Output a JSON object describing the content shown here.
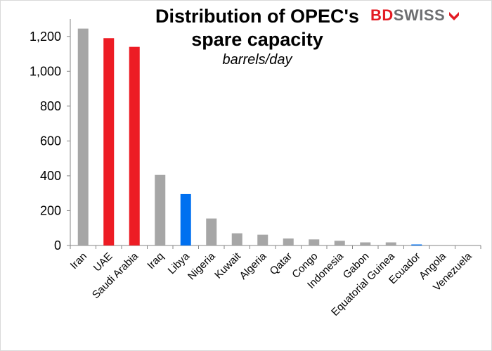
{
  "chart_data": {
    "type": "bar",
    "title_line1": "Distribution of OPEC's",
    "title_line2": "spare capacity",
    "subtitle": "barrels/day",
    "xlabel": "",
    "ylabel": "",
    "ylim": [
      0,
      1300
    ],
    "yticks": [
      0,
      200,
      400,
      600,
      800,
      1000,
      1200
    ],
    "ytick_labels": [
      "0",
      "200",
      "400",
      "600",
      "800",
      "1,000",
      "1,200"
    ],
    "categories": [
      "Iran",
      "UAE",
      "Saudi Arabia",
      "Iraq",
      "Libya",
      "Nigeria",
      "Kuwait",
      "Algeria",
      "Qatar",
      "Congo",
      "Indonesia",
      "Gabon",
      "Equatorial Guinea",
      "Ecuador",
      "Angola",
      "Venezuela"
    ],
    "values": [
      1245,
      1190,
      1140,
      405,
      295,
      155,
      70,
      62,
      40,
      35,
      27,
      18,
      18,
      6,
      0,
      0
    ],
    "bar_colors": [
      "#a6a6a6",
      "#ed1c24",
      "#ed1c24",
      "#a6a6a6",
      "#0070f0",
      "#a6a6a6",
      "#a6a6a6",
      "#a6a6a6",
      "#a6a6a6",
      "#a6a6a6",
      "#a6a6a6",
      "#a6a6a6",
      "#a6a6a6",
      "#0070f0",
      "#a6a6a6",
      "#a6a6a6"
    ],
    "grid": false,
    "legend": "none"
  },
  "logo": {
    "part1": "BD",
    "part2": "SWISS",
    "icon": "bdswiss-arrow-icon"
  }
}
